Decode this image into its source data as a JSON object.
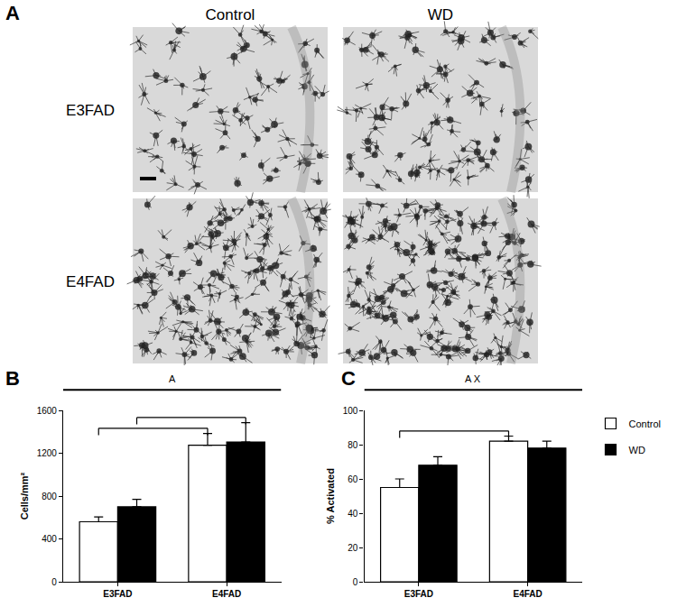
{
  "image_panel": {
    "label": "A",
    "columns": [
      "Control",
      "WD"
    ],
    "rows": [
      "E3FAD",
      "E4FAD"
    ]
  },
  "chart_data": [
    {
      "type": "bar",
      "title": "B",
      "y_label": "Cells/mm²",
      "annotations": [
        "A"
      ],
      "categories": [
        "E3FAD",
        "E4FAD"
      ],
      "series": [
        {
          "name": "Control",
          "color": "#ffffff",
          "values": [
            560,
            1275
          ],
          "errors": [
            45,
            110
          ]
        },
        {
          "name": "WD",
          "color": "#000000",
          "values": [
            700,
            1305
          ],
          "errors": [
            70,
            180
          ]
        }
      ],
      "brackets": [
        {
          "from": {
            "series": "Control",
            "category": "E3FAD"
          },
          "to": {
            "series": "Control",
            "category": "E4FAD"
          }
        },
        {
          "from": {
            "series": "WD",
            "category": "E3FAD"
          },
          "to": {
            "series": "WD",
            "category": "E4FAD"
          }
        }
      ],
      "ylim": [
        0,
        1600
      ],
      "yticks": [
        0,
        400,
        800,
        1200,
        1600
      ],
      "grid": false
    },
    {
      "type": "bar",
      "title": "C",
      "y_label": "% Activated",
      "annotations": [
        "A X"
      ],
      "categories": [
        "E3FAD",
        "E4FAD"
      ],
      "series": [
        {
          "name": "Control",
          "color": "#ffffff",
          "values": [
            55,
            82
          ],
          "errors": [
            5,
            3
          ]
        },
        {
          "name": "WD",
          "color": "#000000",
          "values": [
            68,
            78
          ],
          "errors": [
            5,
            4
          ]
        }
      ],
      "brackets": [
        {
          "from": {
            "series": "Control",
            "category": "E3FAD"
          },
          "to": {
            "series": "Control",
            "category": "E4FAD"
          }
        }
      ],
      "ylim": [
        0,
        100
      ],
      "yticks": [
        0,
        20,
        40,
        60,
        80,
        100
      ],
      "grid": false,
      "legend": "upper right"
    }
  ]
}
